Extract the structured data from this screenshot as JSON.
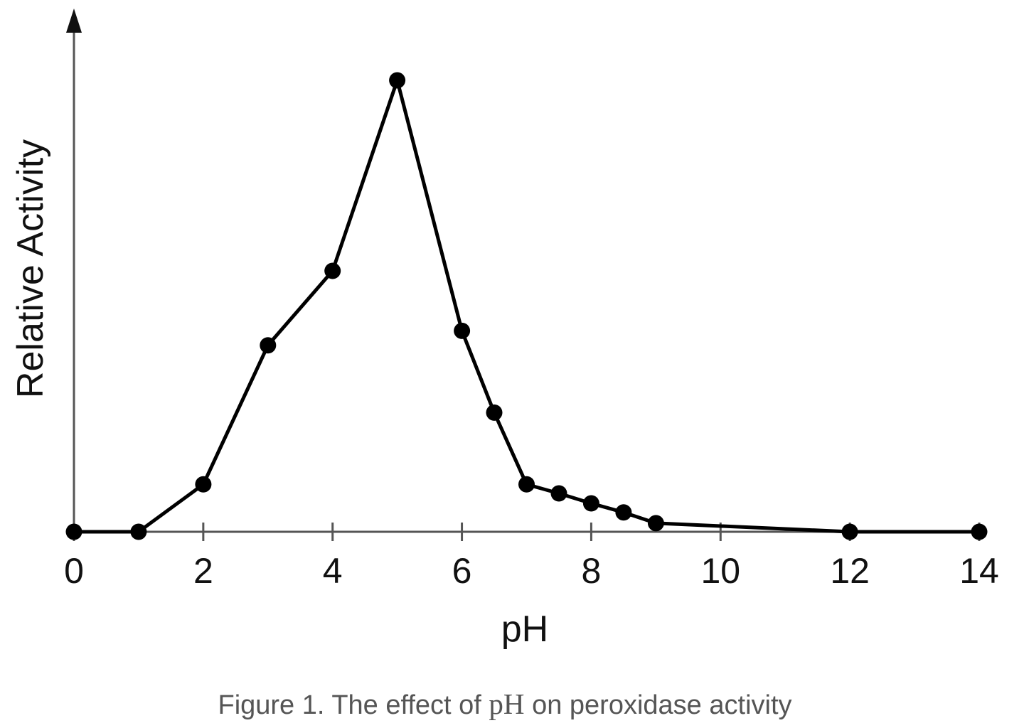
{
  "chart_data": {
    "type": "line",
    "title": "",
    "xlabel": "pH",
    "ylabel": "Relative Activity",
    "xlim": [
      0,
      14
    ],
    "ylim": [
      0,
      1.0
    ],
    "x_ticks": [
      0,
      2,
      4,
      6,
      8,
      10,
      12,
      14
    ],
    "x_tick_labels": [
      "0",
      "2",
      "4",
      "6",
      "8",
      "10",
      "12",
      "14"
    ],
    "y_ticks_shown": false,
    "grid": false,
    "legend": "none",
    "series": [
      {
        "name": "Peroxidase activity",
        "color": "#000000",
        "marker": "filled-circle",
        "x": [
          0,
          1,
          2,
          3,
          4,
          5,
          6,
          6.5,
          7,
          7.5,
          8,
          8.5,
          9,
          12,
          14
        ],
        "y": [
          0,
          0,
          0.105,
          0.413,
          0.578,
          1.0,
          0.445,
          0.264,
          0.105,
          0.085,
          0.063,
          0.043,
          0.019,
          0,
          0
        ]
      }
    ]
  },
  "caption": {
    "prefix": "Figure 1. The effect of ",
    "math": "pH",
    "suffix": " on peroxidase activity"
  }
}
